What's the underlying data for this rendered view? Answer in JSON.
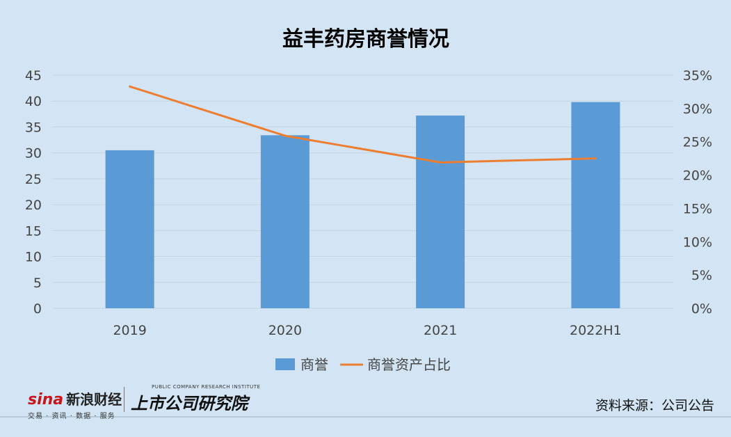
{
  "chart_data": {
    "type": "bar",
    "title": "益丰药房商誉情况",
    "categories": [
      "2019",
      "2020",
      "2021",
      "2022H1"
    ],
    "series": [
      {
        "name": "商誉",
        "type": "bar",
        "axis": "left",
        "values": [
          30.5,
          33.4,
          37.2,
          39.8
        ]
      },
      {
        "name": "商誉资产占比",
        "type": "line",
        "axis": "right",
        "values": [
          0.333,
          0.259,
          0.219,
          0.225
        ]
      }
    ],
    "y_left": {
      "min": 0,
      "max": 45,
      "step": 5,
      "ticks": [
        "0",
        "5",
        "10",
        "15",
        "20",
        "25",
        "30",
        "35",
        "40",
        "45"
      ]
    },
    "y_right": {
      "min": 0,
      "max": 0.35,
      "step": 0.05,
      "ticks": [
        "0%",
        "5%",
        "10%",
        "15%",
        "20%",
        "25%",
        "30%",
        "35%"
      ]
    },
    "grid": true,
    "legend_position": "bottom",
    "colors": {
      "bar": "#5b9bd5",
      "line": "#ed7d31"
    }
  },
  "footer": {
    "source": "资料来源：公司公告",
    "logo_sina": "sina",
    "logo_sina_cn": "新浪财经",
    "logo_sina_tag": "交易 · 资讯 · 数据 · 服务",
    "logo_inst_en": "PUBLIC COMPANY RESEARCH INSTITUTE",
    "logo_inst_cn": "上市公司研究院"
  }
}
